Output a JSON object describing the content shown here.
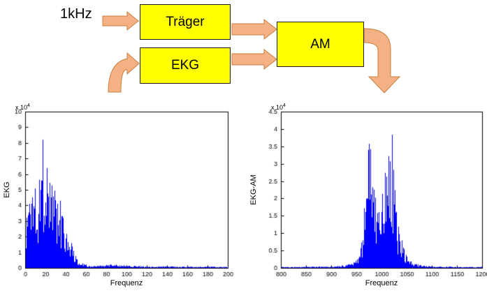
{
  "diagram": {
    "input_label": "1kHz",
    "blocks": [
      {
        "id": "traeger",
        "label": "Träger"
      },
      {
        "id": "ekg",
        "label": "EKG"
      },
      {
        "id": "am",
        "label": "AM"
      }
    ],
    "block_fill": "#FFFF00",
    "arrow_fill": "#F4B183",
    "arrow_stroke": "#C97E3D"
  },
  "chart_data": [
    {
      "type": "line",
      "subtype": "noisy-spectrum",
      "title": "",
      "xlabel": "Frequenz",
      "ylabel": "EKG",
      "exp_base": "x 10",
      "exp_power": "4",
      "xlim": [
        0,
        200
      ],
      "ylim": [
        0,
        10
      ],
      "xticks": [
        0,
        20,
        40,
        60,
        80,
        100,
        120,
        140,
        160,
        180,
        200
      ],
      "yticks": [
        0,
        1,
        2,
        3,
        4,
        5,
        6,
        7,
        8,
        9,
        10
      ],
      "grid": false,
      "line_color": "#0000FF",
      "envelope": [
        [
          0,
          3
        ],
        [
          2,
          5
        ],
        [
          4,
          5.5
        ],
        [
          6,
          6
        ],
        [
          8,
          6.5
        ],
        [
          10,
          6
        ],
        [
          12,
          5.5
        ],
        [
          14,
          6.5
        ],
        [
          16,
          9
        ],
        [
          18,
          7
        ],
        [
          20,
          8.5
        ],
        [
          22,
          6.5
        ],
        [
          24,
          6
        ],
        [
          26,
          6.5
        ],
        [
          28,
          5.5
        ],
        [
          30,
          6
        ],
        [
          32,
          5
        ],
        [
          34,
          4.5
        ],
        [
          36,
          4.2
        ],
        [
          38,
          3.5
        ],
        [
          40,
          3
        ],
        [
          43,
          2.2
        ],
        [
          46,
          1.4
        ],
        [
          50,
          0.8
        ],
        [
          54,
          0.4
        ],
        [
          58,
          0.25
        ],
        [
          64,
          0.18
        ],
        [
          72,
          0.15
        ],
        [
          80,
          0.2
        ],
        [
          88,
          0.22
        ],
        [
          96,
          0.2
        ],
        [
          104,
          0.16
        ],
        [
          112,
          0.12
        ],
        [
          120,
          0.1
        ],
        [
          135,
          0.1
        ],
        [
          150,
          0.09
        ],
        [
          165,
          0.08
        ],
        [
          180,
          0.08
        ],
        [
          200,
          0.08
        ]
      ]
    },
    {
      "type": "line",
      "subtype": "noisy-spectrum",
      "title": "",
      "xlabel": "Frequenz",
      "ylabel": "EKG-AM",
      "exp_base": "x 10",
      "exp_power": "4",
      "xlim": [
        800,
        1200
      ],
      "ylim": [
        0,
        4.5
      ],
      "xticks": [
        800,
        850,
        900,
        950,
        1000,
        1050,
        1100,
        1150,
        1200
      ],
      "yticks": [
        0,
        0.5,
        1,
        1.5,
        2,
        2.5,
        3,
        3.5,
        4,
        4.5
      ],
      "grid": false,
      "line_color": "#0000FF",
      "envelope": [
        [
          800,
          0.03
        ],
        [
          840,
          0.03
        ],
        [
          870,
          0.04
        ],
        [
          900,
          0.05
        ],
        [
          915,
          0.06
        ],
        [
          930,
          0.09
        ],
        [
          940,
          0.14
        ],
        [
          948,
          0.25
        ],
        [
          955,
          0.6
        ],
        [
          960,
          1.1
        ],
        [
          965,
          2.0
        ],
        [
          970,
          3.2
        ],
        [
          974,
          4.35
        ],
        [
          978,
          3.2
        ],
        [
          981,
          4.3
        ],
        [
          984,
          2.7
        ],
        [
          988,
          2.4
        ],
        [
          992,
          2.2
        ],
        [
          996,
          2.0
        ],
        [
          1000,
          2.4
        ],
        [
          1004,
          2.7
        ],
        [
          1008,
          3.1
        ],
        [
          1012,
          4.3
        ],
        [
          1015,
          3.3
        ],
        [
          1019,
          4.25
        ],
        [
          1023,
          2.6
        ],
        [
          1027,
          1.9
        ],
        [
          1031,
          1.4
        ],
        [
          1036,
          1.0
        ],
        [
          1041,
          0.65
        ],
        [
          1046,
          0.42
        ],
        [
          1052,
          0.28
        ],
        [
          1060,
          0.16
        ],
        [
          1070,
          0.1
        ],
        [
          1082,
          0.07
        ],
        [
          1095,
          0.05
        ],
        [
          1110,
          0.04
        ],
        [
          1140,
          0.035
        ],
        [
          1170,
          0.03
        ],
        [
          1200,
          0.03
        ]
      ]
    }
  ]
}
